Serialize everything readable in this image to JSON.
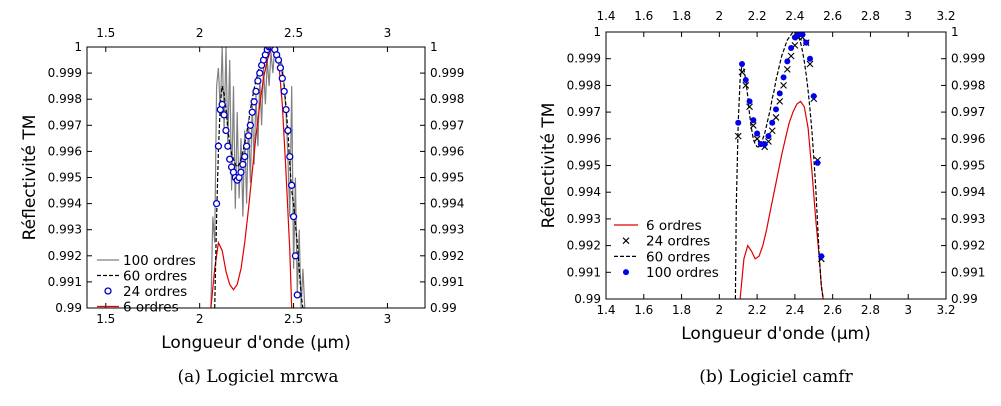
{
  "chart_data": [
    {
      "type": "line",
      "caption": "(a) Logiciel mrcwa",
      "xlabel": "Longueur d'onde (μm)",
      "ylabel": "Réflectivité TM",
      "xlim": [
        1.4,
        3.2
      ],
      "ylim": [
        0.99,
        1.0
      ],
      "x_ticks": [
        1.5,
        2,
        2.5,
        3
      ],
      "x_tick_labels": [
        "1.5",
        "2",
        "2.5",
        "3"
      ],
      "y_ticks": [
        0.99,
        0.991,
        0.992,
        0.993,
        0.994,
        0.995,
        0.996,
        0.997,
        0.998,
        0.999,
        1.0
      ],
      "y_tick_labels_left": [
        "0.99",
        "0.991",
        "0.992",
        "0.993",
        "0.994",
        "0.995",
        "0.996",
        "0.997",
        "0.998",
        "0.999",
        "1"
      ],
      "y_tick_labels_right": [
        "0.99",
        "0.991",
        "0.992",
        "0.993",
        "0.994",
        "0.995",
        "0.996",
        "0.997",
        "0.998",
        "0.999",
        "1"
      ],
      "legend_position": "lower-left",
      "series": [
        {
          "name": "100 ordres",
          "style": "line",
          "color": "#808080",
          "x": [
            2.06,
            2.07,
            2.08,
            2.09,
            2.1,
            2.11,
            2.12,
            2.13,
            2.14,
            2.15,
            2.16,
            2.17,
            2.18,
            2.19,
            2.2,
            2.21,
            2.22,
            2.23,
            2.24,
            2.25,
            2.26,
            2.27,
            2.28,
            2.29,
            2.3,
            2.31,
            2.32,
            2.33,
            2.34,
            2.35,
            2.36,
            2.37,
            2.38,
            2.39,
            2.4,
            2.41,
            2.42,
            2.43,
            2.44,
            2.45,
            2.46,
            2.47,
            2.48,
            2.49,
            2.5,
            2.51,
            2.52,
            2.53,
            2.54,
            2.55,
            2.56
          ],
          "y": [
            0.99,
            0.9935,
            0.9925,
            0.9985,
            0.9992,
            0.9975,
            1.0,
            0.9968,
            1.0,
            0.9962,
            0.9995,
            0.9945,
            0.9985,
            0.9938,
            0.9975,
            0.9942,
            0.9965,
            0.9935,
            0.9968,
            0.994,
            0.9972,
            0.9948,
            0.9978,
            0.9955,
            0.9982,
            0.9962,
            0.9988,
            0.997,
            0.9992,
            0.9978,
            0.9995,
            0.9985,
            0.9998,
            0.999,
            1.0,
            0.9995,
            0.9998,
            0.9995,
            0.9993,
            0.9985,
            0.9975,
            0.9958,
            0.9935,
            0.9985,
            0.9915,
            0.995,
            0.9905,
            0.993,
            0.99,
            0.9915,
            0.99
          ]
        },
        {
          "name": "60 ordres",
          "style": "dashed",
          "color": "#000000",
          "x": [
            2.08,
            2.09,
            2.1,
            2.11,
            2.12,
            2.13,
            2.14,
            2.15,
            2.16,
            2.17,
            2.18,
            2.19,
            2.2,
            2.21,
            2.22,
            2.23,
            2.24,
            2.25,
            2.26,
            2.27,
            2.28,
            2.29,
            2.3,
            2.31,
            2.32,
            2.33,
            2.34,
            2.35,
            2.36,
            2.37,
            2.38,
            2.39,
            2.4,
            2.41,
            2.42,
            2.43,
            2.44,
            2.45,
            2.46,
            2.47,
            2.48,
            2.49,
            2.5,
            2.51,
            2.52,
            2.53,
            2.54,
            2.55
          ],
          "y": [
            0.99,
            0.9935,
            0.996,
            0.9978,
            0.9985,
            0.9982,
            0.9976,
            0.9969,
            0.9963,
            0.9959,
            0.9957,
            0.9955,
            0.9954,
            0.9955,
            0.9957,
            0.996,
            0.9963,
            0.9967,
            0.9971,
            0.9976,
            0.998,
            0.9984,
            0.9987,
            0.999,
            0.9993,
            0.9995,
            0.9997,
            0.9998,
            0.9999,
            1.0,
            1.0,
            1.0,
            1.0,
            0.9999,
            0.9997,
            0.9994,
            0.999,
            0.9985,
            0.9977,
            0.9968,
            0.9955,
            0.9945,
            0.994,
            0.9932,
            0.9925,
            0.9915,
            0.9905,
            0.99
          ]
        },
        {
          "name": "24 ordres",
          "style": "open-circles",
          "color": "#0000cc",
          "x": [
            2.09,
            2.1,
            2.11,
            2.12,
            2.13,
            2.14,
            2.15,
            2.16,
            2.17,
            2.18,
            2.19,
            2.2,
            2.21,
            2.22,
            2.23,
            2.24,
            2.25,
            2.26,
            2.27,
            2.28,
            2.29,
            2.3,
            2.31,
            2.32,
            2.33,
            2.34,
            2.35,
            2.36,
            2.37,
            2.38,
            2.39,
            2.4,
            2.41,
            2.42,
            2.43,
            2.44,
            2.45,
            2.46,
            2.47,
            2.48,
            2.49,
            2.5,
            2.51,
            2.52
          ],
          "y": [
            0.994,
            0.9962,
            0.9976,
            0.9978,
            0.9974,
            0.9968,
            0.9962,
            0.9957,
            0.9954,
            0.9952,
            0.995,
            0.9949,
            0.995,
            0.9952,
            0.9955,
            0.9958,
            0.9962,
            0.9966,
            0.997,
            0.9975,
            0.9979,
            0.9983,
            0.9987,
            0.999,
            0.9993,
            0.9995,
            0.9997,
            0.9999,
            1.0,
            1.0,
            1.0,
            0.9999,
            0.9997,
            0.9995,
            0.9992,
            0.9988,
            0.9983,
            0.9976,
            0.9968,
            0.9958,
            0.9947,
            0.9935,
            0.992,
            0.9905
          ]
        },
        {
          "name": "6 ordres",
          "style": "line",
          "color": "#dd0000",
          "x": [
            2.06,
            2.08,
            2.1,
            2.12,
            2.14,
            2.16,
            2.18,
            2.2,
            2.22,
            2.24,
            2.26,
            2.28,
            2.3,
            2.32,
            2.34,
            2.36,
            2.38,
            2.4,
            2.42,
            2.44,
            2.46,
            2.48,
            2.49
          ],
          "y": [
            0.99,
            0.9915,
            0.9925,
            0.9922,
            0.9914,
            0.9909,
            0.9907,
            0.9909,
            0.9915,
            0.9925,
            0.9938,
            0.9952,
            0.9966,
            0.9978,
            0.9988,
            0.9995,
            0.9999,
            1.0,
            0.9995,
            0.9978,
            0.9952,
            0.9922,
            0.99
          ]
        }
      ]
    },
    {
      "type": "line",
      "caption": "(b) Logiciel camfr",
      "xlabel": "Longueur d'onde (μm)",
      "ylabel": "Réflectivité TM",
      "xlim": [
        1.4,
        3.2
      ],
      "ylim": [
        0.99,
        1.0
      ],
      "x_ticks": [
        1.4,
        1.6,
        1.8,
        2,
        2.2,
        2.4,
        2.6,
        2.8,
        3,
        3.2
      ],
      "x_tick_labels": [
        "1.4",
        "1.6",
        "1.8",
        "2",
        "2.2",
        "2.4",
        "2.6",
        "2.8",
        "3",
        "3.2"
      ],
      "y_ticks": [
        0.99,
        0.991,
        0.992,
        0.993,
        0.994,
        0.995,
        0.996,
        0.997,
        0.998,
        0.999,
        1.0
      ],
      "y_tick_labels_left": [
        "0.99",
        "0.991",
        "0.992",
        "0.993",
        "0.994",
        "0.995",
        "0.996",
        "0.997",
        "0.998",
        "0.999",
        "1"
      ],
      "y_tick_labels_right": [
        "0.99",
        "0.991",
        "0.992",
        "0.993",
        "0.994",
        "0.995",
        "0.996",
        "0.997",
        "0.998",
        "0.999",
        "1"
      ],
      "legend_position": "lower-left",
      "series": [
        {
          "name": "6 ordres",
          "style": "line",
          "color": "#dd0000",
          "x": [
            2.11,
            2.13,
            2.15,
            2.17,
            2.19,
            2.21,
            2.23,
            2.25,
            2.27,
            2.29,
            2.31,
            2.33,
            2.35,
            2.37,
            2.39,
            2.41,
            2.43,
            2.45,
            2.47,
            2.49,
            2.51,
            2.53,
            2.54,
            2.55
          ],
          "y": [
            0.99,
            0.9915,
            0.992,
            0.9918,
            0.9915,
            0.9916,
            0.992,
            0.9926,
            0.9933,
            0.994,
            0.9947,
            0.9954,
            0.996,
            0.9966,
            0.997,
            0.9973,
            0.9974,
            0.9972,
            0.9964,
            0.9948,
            0.993,
            0.9915,
            0.9905,
            0.99
          ]
        },
        {
          "name": "24 ordres",
          "style": "x-markers",
          "color": "#000000",
          "x": [
            2.1,
            2.12,
            2.14,
            2.16,
            2.18,
            2.2,
            2.22,
            2.24,
            2.26,
            2.28,
            2.3,
            2.32,
            2.34,
            2.36,
            2.38,
            2.4,
            2.42,
            2.44,
            2.46,
            2.48,
            2.5,
            2.52,
            2.54
          ],
          "y": [
            0.9961,
            0.9985,
            0.998,
            0.9972,
            0.9965,
            0.996,
            0.9958,
            0.9957,
            0.9959,
            0.9963,
            0.9968,
            0.9974,
            0.998,
            0.9986,
            0.9991,
            0.9995,
            0.9998,
            0.9998,
            0.9996,
            0.9988,
            0.9975,
            0.9952,
            0.9915
          ]
        },
        {
          "name": "60 ordres",
          "style": "dashed",
          "color": "#000000",
          "x": [
            2.085,
            2.09,
            2.1,
            2.11,
            2.12,
            2.13,
            2.14,
            2.15,
            2.16,
            2.17,
            2.18,
            2.19,
            2.2,
            2.21,
            2.22,
            2.23,
            2.24,
            2.25,
            2.26,
            2.27,
            2.28,
            2.29,
            2.3,
            2.31,
            2.32,
            2.33,
            2.34,
            2.35,
            2.36,
            2.37,
            2.38,
            2.39,
            2.4,
            2.41,
            2.42,
            2.43,
            2.44,
            2.45,
            2.46,
            2.47,
            2.48,
            2.49,
            2.5,
            2.51,
            2.52,
            2.53,
            2.54,
            2.55,
            2.555
          ],
          "y": [
            0.99,
            0.9935,
            0.9966,
            0.9982,
            0.9988,
            0.9986,
            0.9982,
            0.9976,
            0.9969,
            0.9964,
            0.996,
            0.9958,
            0.9957,
            0.9957,
            0.9958,
            0.996,
            0.9962,
            0.9965,
            0.9968,
            0.9971,
            0.9975,
            0.9978,
            0.9982,
            0.9985,
            0.9988,
            0.9991,
            0.9993,
            0.9995,
            0.9997,
            0.9998,
            0.9999,
            1.0,
            1.0,
            0.9999,
            0.9998,
            0.9996,
            0.9993,
            0.9989,
            0.9984,
            0.9978,
            0.9971,
            0.9963,
            0.9953,
            0.9942,
            0.9928,
            0.9915,
            0.9905,
            0.99,
            0.99
          ]
        },
        {
          "name": "100 ordres",
          "style": "filled-dots",
          "color": "#0000ee",
          "x": [
            2.1,
            2.12,
            2.14,
            2.16,
            2.18,
            2.2,
            2.22,
            2.24,
            2.26,
            2.28,
            2.3,
            2.32,
            2.34,
            2.36,
            2.38,
            2.4,
            2.42,
            2.44,
            2.46,
            2.48,
            2.5,
            2.52,
            2.54
          ],
          "y": [
            0.9966,
            0.9988,
            0.9982,
            0.9974,
            0.9967,
            0.9962,
            0.9958,
            0.9958,
            0.9961,
            0.9966,
            0.9971,
            0.9977,
            0.9983,
            0.9989,
            0.9994,
            0.9998,
            0.9999,
            0.9999,
            0.9996,
            0.999,
            0.9976,
            0.9951,
            0.9916
          ]
        }
      ]
    }
  ]
}
